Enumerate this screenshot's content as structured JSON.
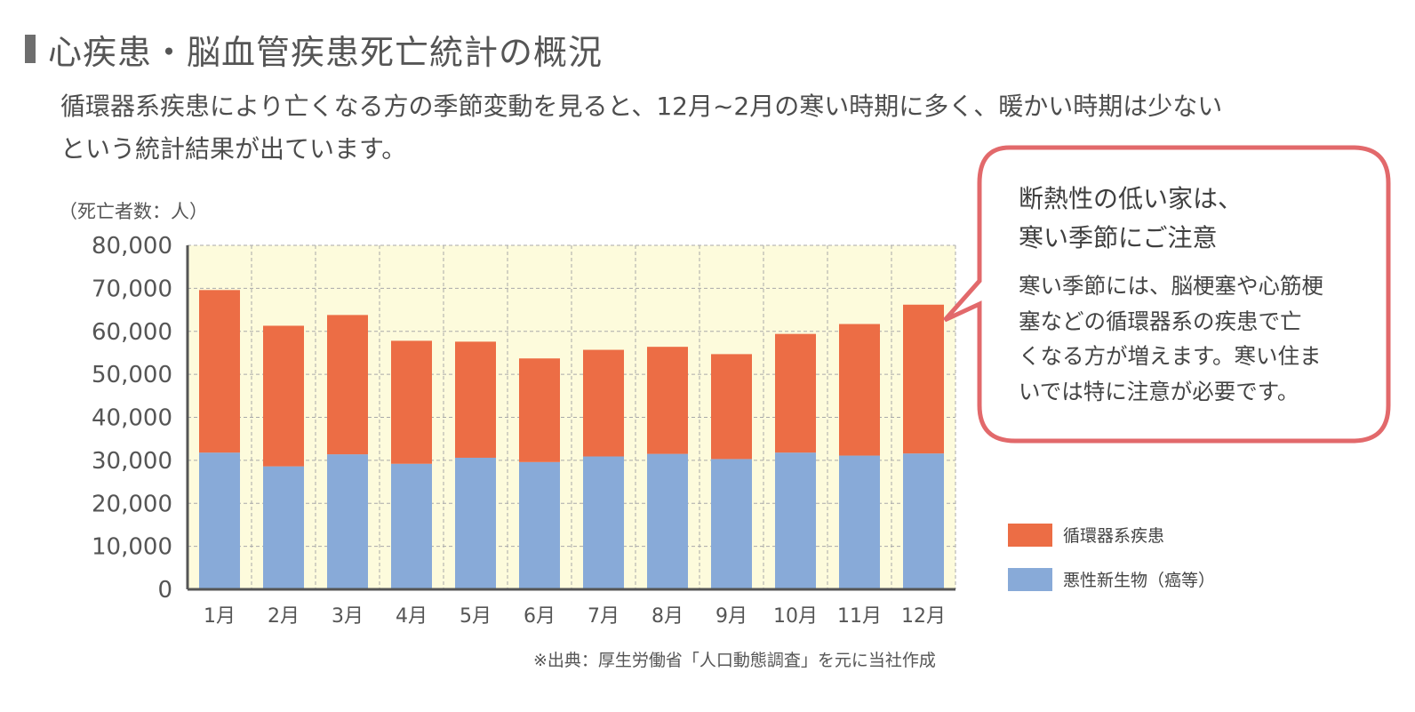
{
  "heading": {
    "title": "心疾患・脳血管疾患死亡統計の概況",
    "intro_lines": [
      "循環器系疾患により亡くなる方の季節変動を見ると、12月~2月の寒い時期に多く、暖かい時期は少ない",
      "という統計結果が出ています。"
    ]
  },
  "callout": {
    "title_lines": [
      "断熱性の低い家は、",
      "寒い季節にご注意"
    ],
    "body_lines": [
      "寒い季節には、脳梗塞や心筋梗",
      "塞などの循環器系の疾患で亡",
      "くなる方が増えます。寒い住ま",
      "いでは特に注意が必要です。"
    ],
    "border_color": "#e2696b"
  },
  "source_note": "※出典：厚生労働省「人口動態調査」を元に当社作成",
  "chart_data": {
    "type": "bar",
    "stacked": true,
    "unit_label": "（死亡者数：人）",
    "categories": [
      "1月",
      "2月",
      "3月",
      "4月",
      "5月",
      "6月",
      "7月",
      "8月",
      "9月",
      "10月",
      "11月",
      "12月"
    ],
    "ylim": [
      0,
      80000
    ],
    "yticks": [
      "0",
      "10,000",
      "20,000",
      "30,000",
      "40,000",
      "50,000",
      "60,000",
      "70,000",
      "80,000"
    ],
    "grid": true,
    "background_color": "#fdfbdc",
    "legend_position": "right",
    "series": [
      {
        "name": "悪性新生物（癌等）",
        "color": "#88aad8",
        "values": [
          31800,
          28600,
          31400,
          29200,
          30600,
          29600,
          30900,
          31500,
          30300,
          31800,
          31100,
          31600
        ]
      },
      {
        "name": "循環器系疾患",
        "color": "#ec6d45",
        "values": [
          37800,
          32700,
          32400,
          28600,
          27000,
          24100,
          24800,
          24900,
          24400,
          27600,
          30600,
          34600
        ]
      }
    ]
  }
}
